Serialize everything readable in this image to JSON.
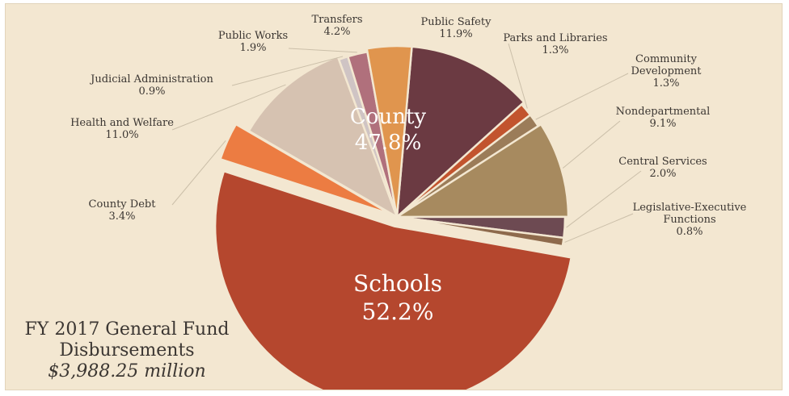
{
  "chart_data": {
    "type": "pie",
    "title_lines": [
      "FY 2017 General Fund",
      "Disbursements"
    ],
    "total": "$3,988.25 million",
    "groups": [
      {
        "name": "County",
        "percent_label": "47.8%",
        "value": 47.8
      },
      {
        "name": "Schools",
        "percent_label": "52.2%",
        "value": 52.2
      }
    ],
    "slices": [
      {
        "id": "public-safety",
        "label": [
          "Public Safety"
        ],
        "percent_label": "11.9%",
        "value": 11.9,
        "color": "#6b3a42",
        "group": "County"
      },
      {
        "id": "parks-libraries",
        "label": [
          "Parks and Libraries"
        ],
        "percent_label": "1.3%",
        "value": 1.3,
        "color": "#c2542e",
        "group": "County"
      },
      {
        "id": "community-development",
        "label": [
          "Community",
          "Development"
        ],
        "percent_label": "1.3%",
        "value": 1.3,
        "color": "#9b7c59",
        "group": "County"
      },
      {
        "id": "nondepartmental",
        "label": [
          "Nondepartmental"
        ],
        "percent_label": "9.1%",
        "value": 9.1,
        "color": "#a78a5f",
        "group": "County"
      },
      {
        "id": "central-services",
        "label": [
          "Central Services"
        ],
        "percent_label": "2.0%",
        "value": 2.0,
        "color": "#6d4a52",
        "group": "County"
      },
      {
        "id": "legislative-executive",
        "label": [
          "Legislative-Executive",
          "Functions"
        ],
        "percent_label": "0.8%",
        "value": 0.8,
        "color": "#8e6a4c",
        "group": "County"
      },
      {
        "id": "schools",
        "label": [
          "Schools"
        ],
        "percent_label": "52.2%",
        "value": 52.2,
        "color": "#b5472e",
        "group": "Schools"
      },
      {
        "id": "county-debt",
        "label": [
          "County Debt"
        ],
        "percent_label": "3.4%",
        "value": 3.4,
        "color": "#ec7c42",
        "group": "County"
      },
      {
        "id": "health-welfare",
        "label": [
          "Health and Welfare"
        ],
        "percent_label": "11.0%",
        "value": 11.0,
        "color": "#d6c2b1",
        "group": "County"
      },
      {
        "id": "judicial-administration",
        "label": [
          "Judicial Administration"
        ],
        "percent_label": "0.9%",
        "value": 0.9,
        "color": "#cfc4c4",
        "group": "County"
      },
      {
        "id": "public-works",
        "label": [
          "Public Works"
        ],
        "percent_label": "1.9%",
        "value": 1.9,
        "color": "#b0707c",
        "group": "County"
      },
      {
        "id": "transfers",
        "label": [
          "Transfers"
        ],
        "percent_label": "4.2%",
        "value": 4.2,
        "color": "#e0954e",
        "group": "County"
      }
    ]
  }
}
